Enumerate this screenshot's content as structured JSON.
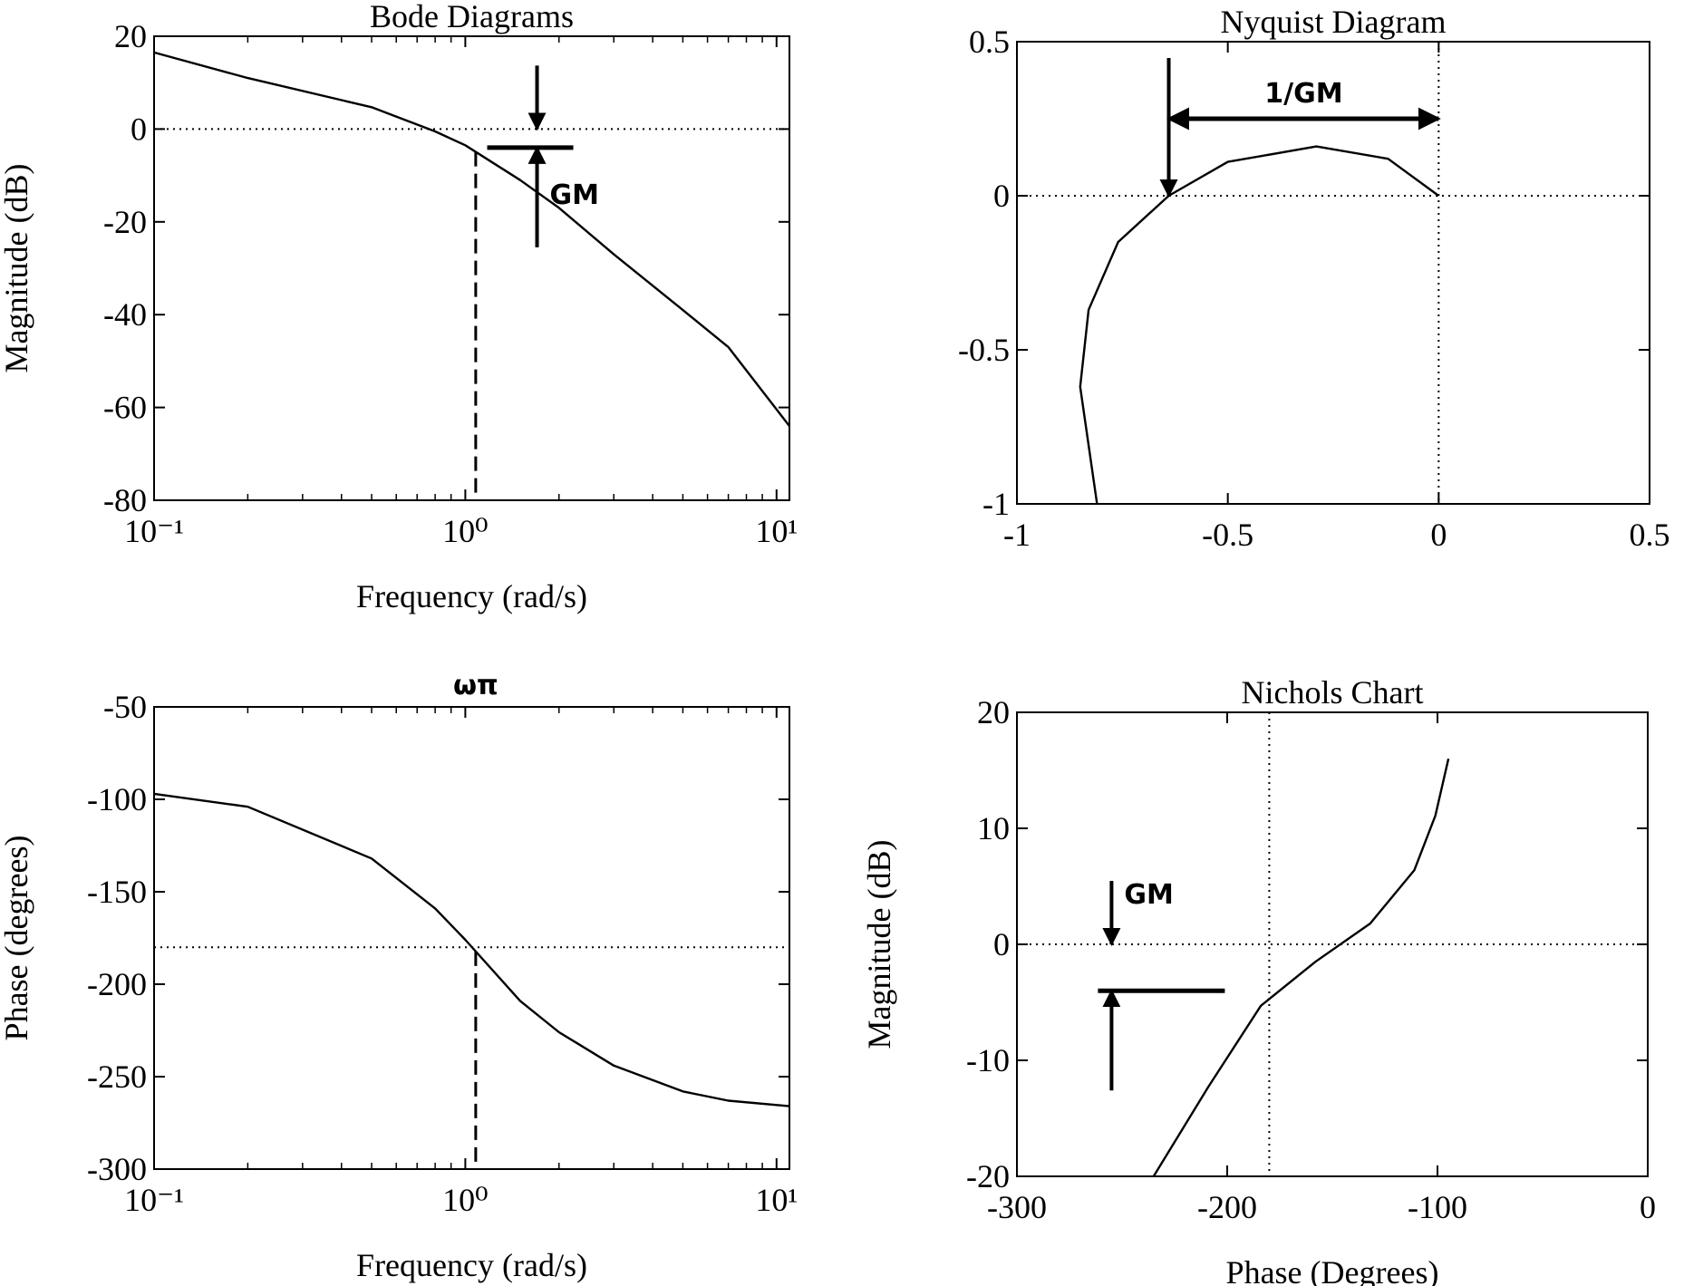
{
  "chart_data": [
    {
      "type": "line",
      "title": "Bode Diagrams",
      "xlabel": "Frequency (rad/s)",
      "ylabel": "Magnitude (dB)",
      "xscale": "log",
      "color": "#000000",
      "x": [
        0.1,
        0.2,
        0.5,
        0.8,
        1,
        1.5,
        2,
        3,
        5,
        7,
        11
      ],
      "values": [
        16.5,
        11,
        4.7,
        -0.5,
        -3.5,
        -11,
        -17,
        -27,
        -39,
        -47,
        -64
      ],
      "xlim": [
        0.1,
        11
      ],
      "ylim": [
        -80,
        20
      ],
      "xticks": [
        {
          "value": 0.1,
          "label": "10⁻¹"
        },
        {
          "value": 1,
          "label": "10⁰"
        },
        {
          "value": 10,
          "label": "10¹"
        }
      ],
      "yticks": [
        -80,
        -60,
        -40,
        -20,
        0,
        20
      ],
      "hline": 0,
      "vline": 1.08,
      "annotations": [
        {
          "text": "GM",
          "x": 1.7,
          "y": -4
        }
      ]
    },
    {
      "type": "nyquist",
      "title": "Nyquist Diagram",
      "color": "#000000",
      "x": [
        -0.81,
        -0.85,
        -0.83,
        -0.76,
        -0.64,
        -0.5,
        -0.29,
        -0.12,
        0
      ],
      "values": [
        -1,
        -0.62,
        -0.37,
        -0.15,
        0,
        0.11,
        0.16,
        0.12,
        0
      ],
      "xlim": [
        -1,
        0.5
      ],
      "ylim": [
        -1,
        0.5
      ],
      "xticks": [
        -1,
        -0.5,
        0,
        0.5
      ],
      "yticks": [
        -1,
        -0.5,
        0,
        0.5
      ],
      "hline": 0,
      "vline": 0,
      "annotations": [
        {
          "text": "1/GM",
          "x": -0.64,
          "y": 0.25
        }
      ]
    },
    {
      "type": "line",
      "xlabel": "Frequency (rad/s)",
      "ylabel": "Phase (degrees)",
      "xscale": "log",
      "color": "#000000",
      "x": [
        0.1,
        0.2,
        0.5,
        0.8,
        1,
        1.5,
        2,
        3,
        5,
        7,
        11
      ],
      "values": [
        -97,
        -104,
        -132,
        -159,
        -176,
        -209,
        -226,
        -244,
        -258,
        -263,
        -266
      ],
      "xlim": [
        0.1,
        11
      ],
      "ylim": [
        -300,
        -50
      ],
      "xticks": [
        {
          "value": 0.1,
          "label": "10⁻¹"
        },
        {
          "value": 1,
          "label": "10⁰"
        },
        {
          "value": 10,
          "label": "10¹"
        }
      ],
      "yticks": [
        -300,
        -250,
        -200,
        -150,
        -100,
        -50
      ],
      "hline": -180,
      "vline": 1.08,
      "annotations": [
        {
          "text": "ωπ",
          "x": 1.08,
          "y": -50
        }
      ]
    },
    {
      "type": "nichols",
      "title": "Nichols Chart",
      "xlabel": "Phase (Degrees)",
      "ylabel": "Magnitude (dB)",
      "color": "#000000",
      "x": [
        -235,
        -209,
        -184,
        -158,
        -132,
        -111,
        -101,
        -94.8
      ],
      "values": [
        -20,
        -12.3,
        -5.3,
        -1.5,
        1.8,
        6.4,
        11.1,
        16
      ],
      "xlim": [
        -300,
        0
      ],
      "ylim": [
        -20,
        20
      ],
      "xticks": [
        -300,
        -200,
        -100,
        0
      ],
      "yticks": [
        -20,
        -10,
        0,
        10,
        20
      ],
      "hline": 0,
      "vline": -180,
      "annotations": [
        {
          "text": "GM",
          "x": -255,
          "y": -4
        }
      ]
    }
  ]
}
